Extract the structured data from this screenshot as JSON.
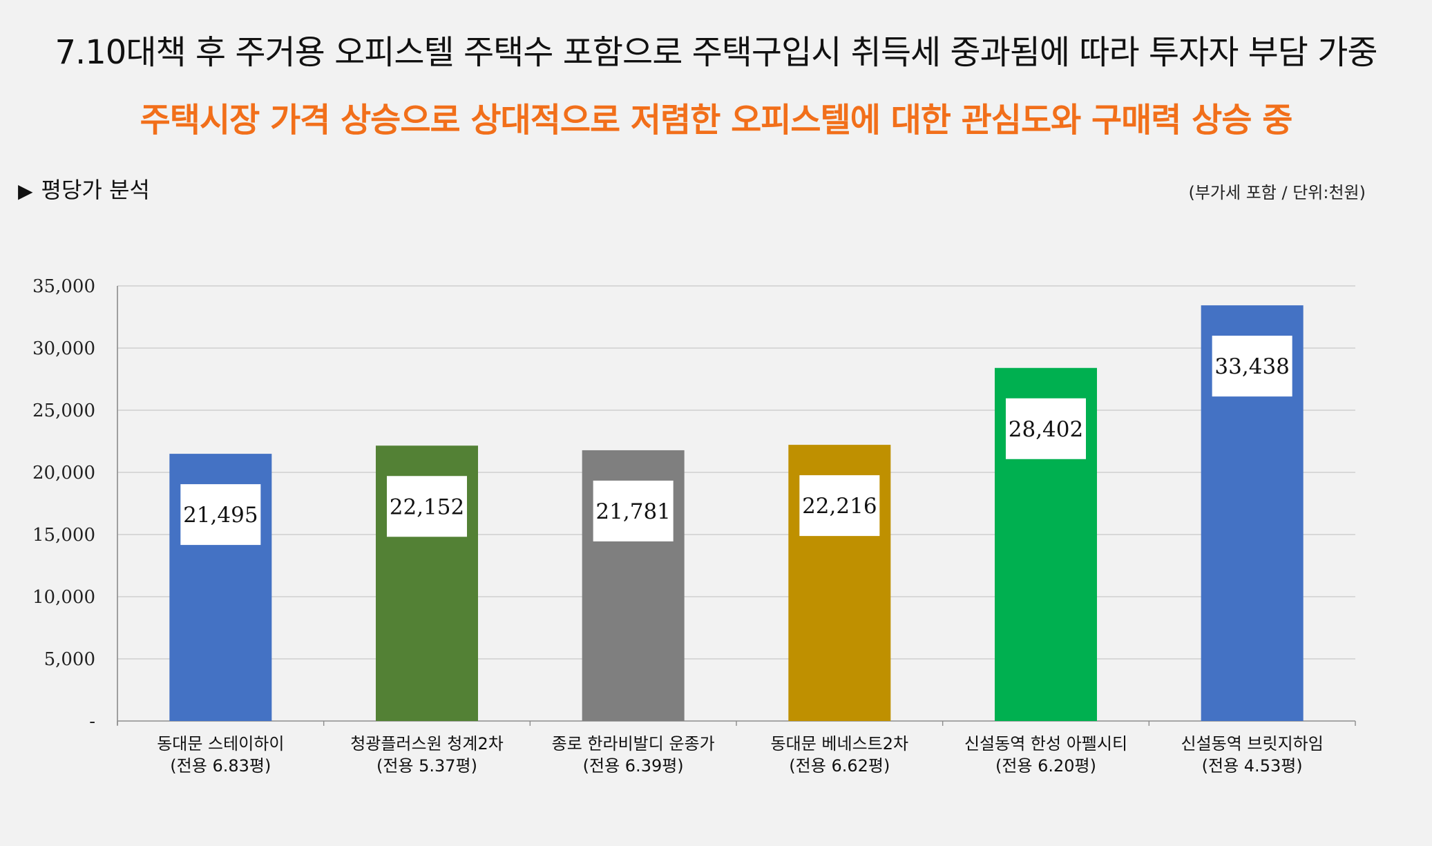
{
  "header": {
    "headline": "7.10대책 후 주거용 오피스텔 주택수 포함으로 주택구입시 취득세 중과됨에 따라 투자자 부담 가중",
    "subhead": "주택시장 가격 상승으로 상대적으로 저렴한 오피스텔에 대한 관심도와 구매력 상승 중"
  },
  "section": {
    "marker": "▶",
    "title": "평당가 분석",
    "unit_note": "(부가세 포함 / 단위:천원)"
  },
  "chart_data": {
    "type": "bar",
    "categories": [
      {
        "name": "동대문 스테이하이",
        "note": "(전용 6.83평)"
      },
      {
        "name": "청광플러스원 청계2차",
        "note": "(전용 5.37평)"
      },
      {
        "name": "종로 한라비발디 운종가",
        "note": "(전용 6.39평)"
      },
      {
        "name": "동대문 베네스트2차",
        "note": "(전용 6.62평)"
      },
      {
        "name": "신설동역 한성 아펠시티",
        "note": "(전용 6.20평)"
      },
      {
        "name": "신설동역 브릿지하임",
        "note": "(전용 4.53평)"
      }
    ],
    "values": [
      21495,
      22152,
      21781,
      22216,
      28402,
      33438
    ],
    "data_labels": [
      "21,495",
      "22,152",
      "21,781",
      "22,216",
      "28,402",
      "33,438"
    ],
    "colors": [
      "#4472c4",
      "#538135",
      "#7f7f7f",
      "#bf9000",
      "#00b050",
      "#4472c4"
    ],
    "ylim": [
      0,
      35000
    ],
    "y_ticks": [
      0,
      5000,
      10000,
      15000,
      20000,
      25000,
      30000,
      35000
    ],
    "y_tick_labels": [
      "-",
      "5,000",
      "10,000",
      "15,000",
      "20,000",
      "25,000",
      "30,000",
      "35,000"
    ],
    "grid": true,
    "title": "",
    "xlabel": "",
    "ylabel": ""
  }
}
